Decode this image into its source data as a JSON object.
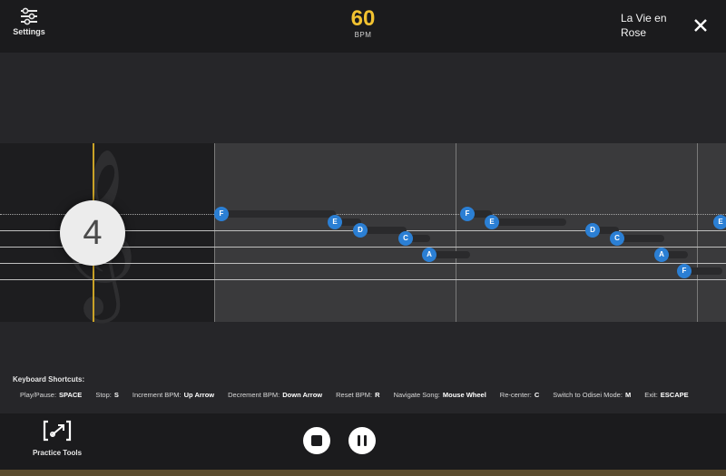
{
  "header": {
    "settings_label": "Settings",
    "bpm_value": "60",
    "bpm_label": "BPM",
    "song_title": "La Vie en Rose"
  },
  "staff": {
    "countdown": "4",
    "clef_glyph": "𝄞",
    "notes": [
      {
        "name": "F",
        "label": "F"
      },
      {
        "name": "E",
        "label": "E"
      },
      {
        "name": "D",
        "label": "D"
      },
      {
        "name": "C",
        "label": "C"
      },
      {
        "name": "A",
        "label": "A"
      },
      {
        "name": "F",
        "label": "F"
      },
      {
        "name": "E",
        "label": "E"
      },
      {
        "name": "D",
        "label": "D"
      },
      {
        "name": "C",
        "label": "C"
      },
      {
        "name": "A",
        "label": "A"
      },
      {
        "name": "F",
        "label": "F"
      },
      {
        "name": "E",
        "label": "E"
      }
    ],
    "note_color": "#2b7fd4",
    "playhead_color": "#c9a227"
  },
  "shortcuts": {
    "title": "Keyboard Shortcuts:",
    "items": [
      {
        "label": "Play/Pause:",
        "key": "SPACE"
      },
      {
        "label": "Stop:",
        "key": "S"
      },
      {
        "label": "Increment BPM:",
        "key": "Up Arrow"
      },
      {
        "label": "Decrement BPM:",
        "key": "Down Arrow"
      },
      {
        "label": "Reset BPM:",
        "key": "R"
      },
      {
        "label": "Navigate Song:",
        "key": "Mouse Wheel"
      },
      {
        "label": "Re-center:",
        "key": "C"
      },
      {
        "label": "Switch to Odisei Mode:",
        "key": "M"
      },
      {
        "label": "Exit:",
        "key": "ESCAPE"
      }
    ]
  },
  "footer": {
    "practice_label": "Practice Tools"
  },
  "icons": {
    "settings": "sliders-icon",
    "close": "close-icon",
    "practice": "practice-tools-icon",
    "stop": "stop-icon",
    "pause": "pause-icon"
  },
  "colors": {
    "bpm_accent": "#f2c230",
    "background": "#232326"
  }
}
